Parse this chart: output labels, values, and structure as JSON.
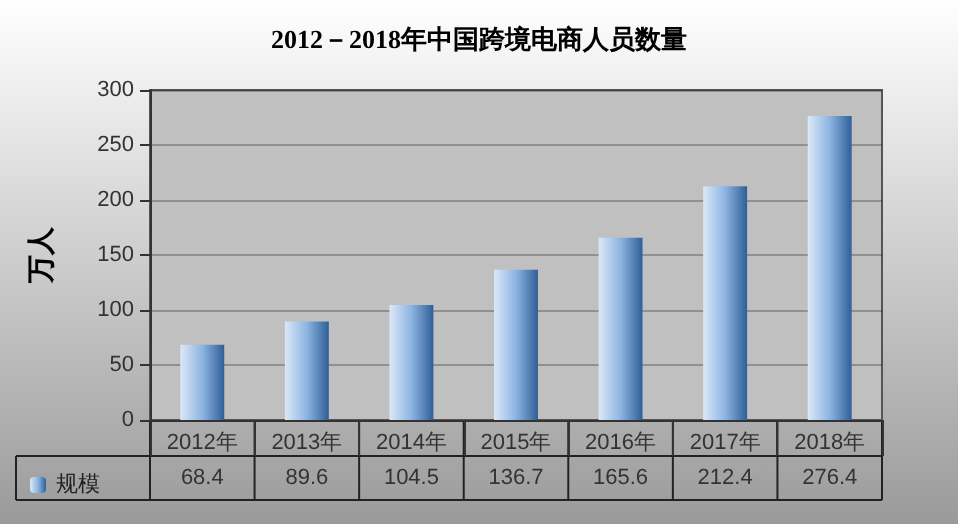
{
  "chart_data": {
    "type": "bar",
    "title": "2012－2018年中国跨境电商人员数量",
    "ylabel": "万人",
    "categories": [
      "2012年",
      "2013年",
      "2014年",
      "2015年",
      "2016年",
      "2017年",
      "2018年"
    ],
    "series": [
      {
        "name": "规模",
        "color": "#8db4e2",
        "values": [
          68.4,
          89.6,
          104.5,
          136.7,
          165.6,
          212.4,
          276.4
        ]
      }
    ],
    "ylim": [
      0,
      300
    ],
    "yticks": [
      0,
      50,
      100,
      150,
      200,
      250,
      300
    ],
    "grid": "y",
    "legend": "bottom left",
    "data_labels": true
  }
}
